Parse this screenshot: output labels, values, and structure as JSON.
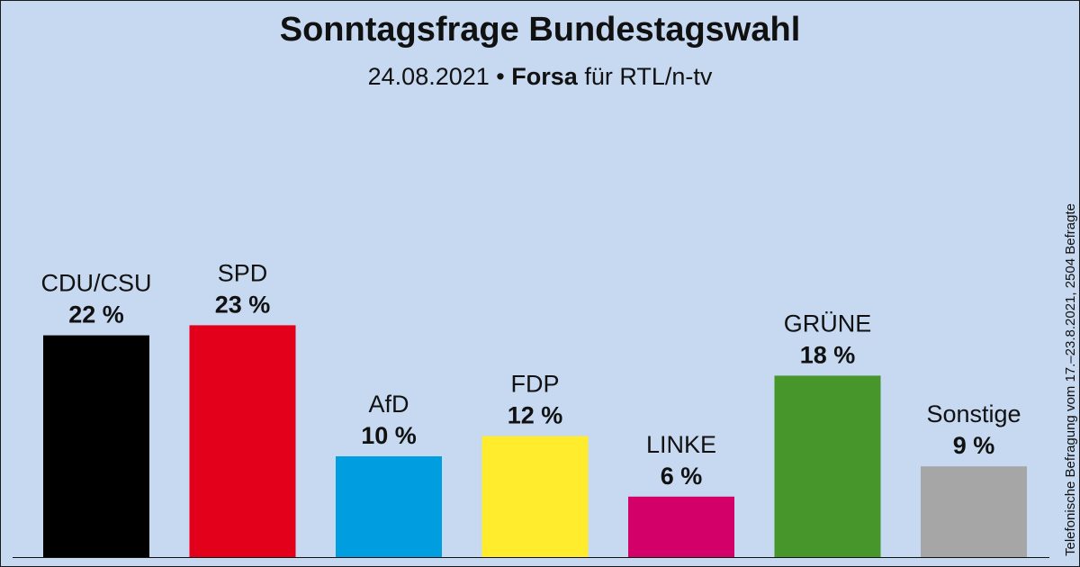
{
  "header": {
    "title": "Sonntagsfrage Bundestagswahl",
    "date": "24.08.2021",
    "separator": "•",
    "pollster": "Forsa",
    "client": "für RTL/n-tv"
  },
  "sidenote": "Telefonische Befragung vom 17.–23.8.2021, 2504 Befragte",
  "chart_data": {
    "type": "bar",
    "title": "Sonntagsfrage Bundestagswahl",
    "subtitle": "24.08.2021 • Forsa für RTL/n-tv",
    "xlabel": "",
    "ylabel": "",
    "categories": [
      "CDU/CSU",
      "SPD",
      "AfD",
      "FDP",
      "LINKE",
      "GRÜNE",
      "Sonstige"
    ],
    "values": [
      22,
      23,
      10,
      12,
      6,
      18,
      9
    ],
    "value_labels": [
      "22 %",
      "23 %",
      "10 %",
      "12 %",
      "6 %",
      "18 %",
      "9 %"
    ],
    "colors": [
      "#000000",
      "#e3001b",
      "#009ee0",
      "#ffed2d",
      "#d20068",
      "#46962b",
      "#a6a6a6"
    ],
    "ylim": [
      0,
      25
    ],
    "grid": false,
    "legend": "none"
  }
}
